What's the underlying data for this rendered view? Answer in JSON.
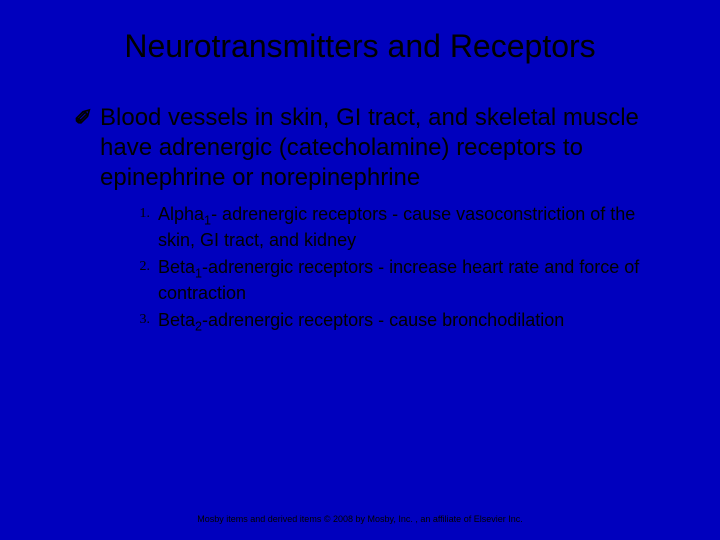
{
  "colors": {
    "background": "#0000be",
    "title_text": "#000000",
    "body_text": "#000000",
    "footer_text": "#000000"
  },
  "typography": {
    "title_fontsize": 32,
    "body_fontsize": 24,
    "list_fontsize": 18,
    "list_marker_fontsize": 14,
    "footer_fontsize": 9,
    "font_family": "Arial",
    "marker_font_family": "Times New Roman"
  },
  "title": "Neurotransmitters and Receptors",
  "bullet_glyph": "✐",
  "main_bullet": "Blood vessels in skin, GI tract, and skeletal muscle have adrenergic (catecholamine) receptors to epinephrine or norepinephrine",
  "numbered_items": [
    {
      "marker": "1.",
      "prefix": "Alpha",
      "subscript": "1",
      "suffix": "- adrenergic receptors - cause     vasoconstriction of the skin, GI tract, and kidney"
    },
    {
      "marker": "2.",
      "prefix": "Beta",
      "subscript": "1",
      "suffix": "-adrenergic receptors - increase heart rate and force of contraction"
    },
    {
      "marker": "3.",
      "prefix": "Beta",
      "subscript": "2",
      "suffix": "-adrenergic receptors - cause bronchodilation"
    }
  ],
  "footer": "Mosby items and derived items © 2008 by Mosby, Inc. , an affiliate of Elsevier Inc."
}
